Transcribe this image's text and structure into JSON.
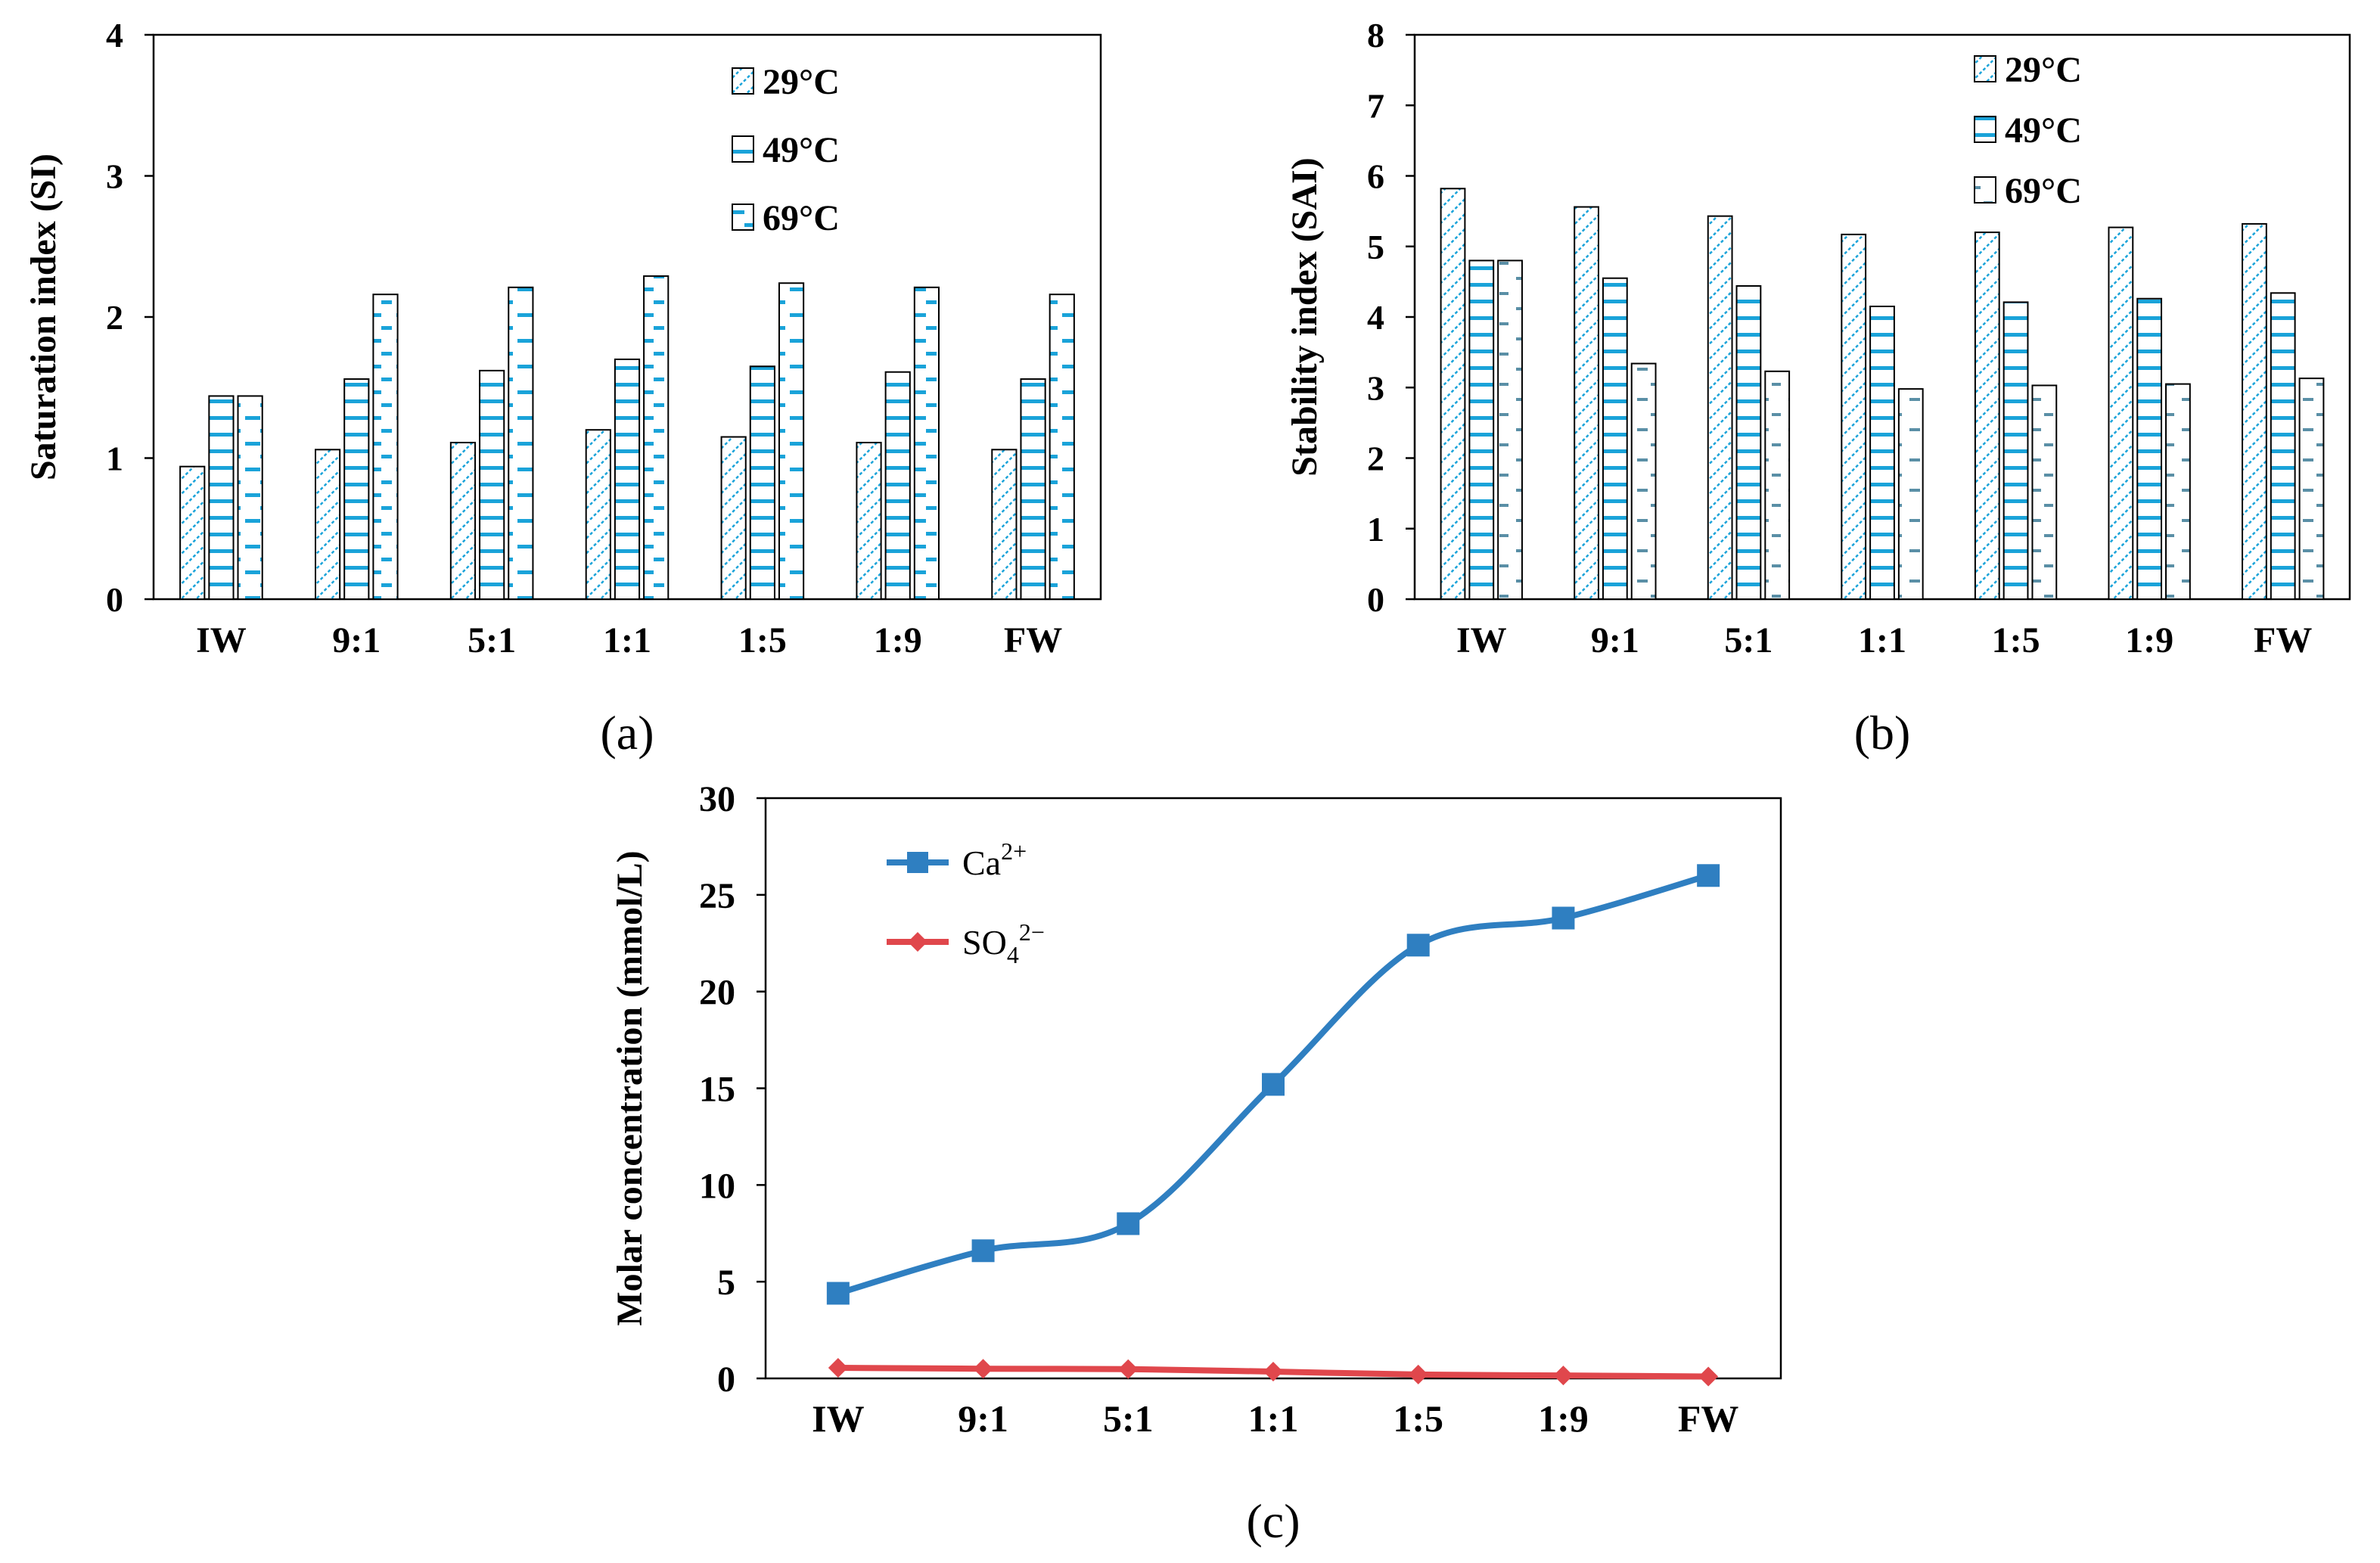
{
  "chart_data": [
    {
      "id": "a",
      "type": "bar",
      "caption": "(a)",
      "ylabel": "Saturation index (SI)",
      "ylim": [
        0,
        4
      ],
      "yticks": [
        "0",
        "1",
        "2",
        "3",
        "4"
      ],
      "categories": [
        "IW",
        "9:1",
        "5:1",
        "1:1",
        "1:5",
        "1:9",
        "FW"
      ],
      "legend_position": "top-right",
      "series": [
        {
          "name": "29°C",
          "values": [
            0.94,
            1.06,
            1.11,
            1.2,
            1.15,
            1.11,
            1.06
          ]
        },
        {
          "name": "49°C",
          "values": [
            1.44,
            1.56,
            1.62,
            1.7,
            1.65,
            1.61,
            1.56
          ]
        },
        {
          "name": "69°C",
          "values": [
            1.44,
            2.16,
            2.21,
            2.29,
            2.24,
            2.21,
            2.16
          ]
        }
      ]
    },
    {
      "id": "b",
      "type": "bar",
      "caption": "(b)",
      "ylabel": "Stability index (SAI)",
      "ylim": [
        0,
        8
      ],
      "yticks": [
        "0",
        "1",
        "2",
        "3",
        "4",
        "5",
        "6",
        "7",
        "8"
      ],
      "categories": [
        "IW",
        "9:1",
        "5:1",
        "1:1",
        "1:5",
        "1:9",
        "FW"
      ],
      "legend_position": "top-center",
      "series": [
        {
          "name": "29°C",
          "values": [
            5.82,
            5.56,
            5.43,
            5.17,
            5.2,
            5.27,
            5.32
          ]
        },
        {
          "name": "49°C",
          "values": [
            4.8,
            4.55,
            4.44,
            4.15,
            4.21,
            4.26,
            4.34
          ]
        },
        {
          "name": "69°C",
          "values": [
            4.8,
            3.34,
            3.23,
            2.98,
            3.03,
            3.05,
            3.13
          ]
        }
      ]
    },
    {
      "id": "c",
      "type": "line",
      "caption": "(c)",
      "ylabel": "Molar concentration (mmol/L)",
      "ylim": [
        0,
        30
      ],
      "yticks": [
        "0",
        "5",
        "10",
        "15",
        "20",
        "25",
        "30"
      ],
      "categories": [
        "IW",
        "9:1",
        "5:1",
        "1:1",
        "1:5",
        "1:9",
        "FW"
      ],
      "legend_position": "top-left",
      "series": [
        {
          "name": "Ca",
          "superscript": "2+",
          "subscript": "",
          "marker": "square",
          "color": "#2f7fc1",
          "values": [
            4.4,
            6.6,
            8.0,
            15.2,
            22.4,
            23.8,
            26.0
          ]
        },
        {
          "name": "SO",
          "subscript": "4",
          "superscript": "2−",
          "marker": "diamond",
          "color": "#e0474c",
          "values": [
            0.55,
            0.5,
            0.48,
            0.35,
            0.2,
            0.15,
            0.1
          ]
        }
      ]
    }
  ],
  "colors": {
    "bar_fill": "#ffffff",
    "bar_pattern": "#1aa3d9",
    "line_ca": "#2f7fc1",
    "line_so4": "#e0474c"
  }
}
